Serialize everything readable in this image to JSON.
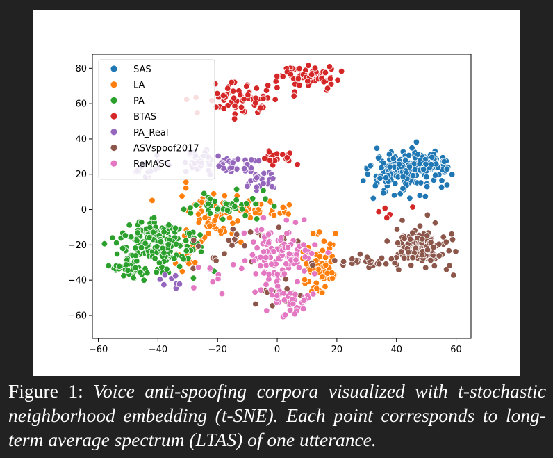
{
  "chart_data": {
    "type": "scatter",
    "title": "",
    "xlabel": "",
    "ylabel": "",
    "xlim": [
      -62,
      65
    ],
    "ylim": [
      -73,
      88
    ],
    "xticks": [
      -60,
      -40,
      -20,
      0,
      20,
      40,
      60
    ],
    "yticks": [
      -60,
      -40,
      -20,
      0,
      20,
      40,
      60,
      80
    ],
    "xtick_labels": [
      "−60",
      "−40",
      "−20",
      "0",
      "20",
      "40",
      "60"
    ],
    "ytick_labels": [
      "−60",
      "−40",
      "−20",
      "0",
      "20",
      "40",
      "60",
      "80"
    ],
    "grid": false,
    "legend_position": "top-left",
    "series": [
      {
        "name": "SAS",
        "color": "#1f77b4",
        "clusters": [
          {
            "cx": 43,
            "cy": 21,
            "sx": 6,
            "sy": 7,
            "n": 160
          },
          {
            "cx": 53,
            "cy": 25,
            "sx": 3,
            "sy": 3,
            "n": 35
          }
        ]
      },
      {
        "name": "LA",
        "color": "#ff7f0e",
        "clusters": [
          {
            "cx": -22,
            "cy": -8,
            "sx": 5,
            "sy": 9,
            "n": 60
          },
          {
            "cx": -8,
            "cy": 0,
            "sx": 6,
            "sy": 2.5,
            "n": 40
          },
          {
            "cx": 13,
            "cy": -30,
            "sx": 3,
            "sy": 8,
            "n": 70
          },
          {
            "cx": -30,
            "cy": -28,
            "sx": 3,
            "sy": 4,
            "n": 15
          }
        ]
      },
      {
        "name": "PA",
        "color": "#2ca02c",
        "clusters": [
          {
            "cx": -40,
            "cy": -20,
            "sx": 7,
            "sy": 8,
            "n": 170
          },
          {
            "cx": -50,
            "cy": -33,
            "sx": 3,
            "sy": 3,
            "n": 40
          },
          {
            "cx": -18,
            "cy": 2,
            "sx": 6,
            "sy": 3,
            "n": 50
          }
        ]
      },
      {
        "name": "BTAS",
        "color": "#d62728",
        "clusters": [
          {
            "cx": -13,
            "cy": 63,
            "sx": 6,
            "sy": 4,
            "n": 70
          },
          {
            "cx": 10,
            "cy": 75,
            "sx": 5,
            "sy": 3,
            "n": 65
          },
          {
            "cx": 0,
            "cy": 30,
            "sx": 4,
            "sy": 2.5,
            "n": 25
          },
          {
            "cx": 38,
            "cy": -2,
            "sx": 3,
            "sy": 2,
            "n": 5
          }
        ]
      },
      {
        "name": "PA_Real",
        "color": "#9467bd",
        "clusters": [
          {
            "cx": -30,
            "cy": 28,
            "sx": 6,
            "sy": 4,
            "n": 30
          },
          {
            "cx": -15,
            "cy": 25,
            "sx": 7,
            "sy": 3,
            "n": 40
          },
          {
            "cx": -3,
            "cy": 15,
            "sx": 2.5,
            "sy": 3,
            "n": 20
          },
          {
            "cx": -44,
            "cy": 21,
            "sx": 2,
            "sy": 1.5,
            "n": 10
          },
          {
            "cx": -36,
            "cy": -40,
            "sx": 2,
            "sy": 2,
            "n": 8
          }
        ]
      },
      {
        "name": "ASVspoof2017",
        "color": "#8c564b",
        "clusters": [
          {
            "cx": 49,
            "cy": -20,
            "sx": 5,
            "sy": 6,
            "n": 110
          },
          {
            "cx": 30,
            "cy": -29,
            "sx": 5,
            "sy": 2,
            "n": 30
          },
          {
            "cx": -10,
            "cy": -20,
            "sx": 9,
            "sy": 9,
            "n": 30
          },
          {
            "cx": -2,
            "cy": -50,
            "sx": 6,
            "sy": 4,
            "n": 10
          }
        ]
      },
      {
        "name": "ReMASC",
        "color": "#e377c2",
        "clusters": [
          {
            "cx": 0,
            "cy": -25,
            "sx": 6,
            "sy": 9,
            "n": 110
          },
          {
            "cx": 4,
            "cy": -52,
            "sx": 4,
            "sy": 4,
            "n": 40
          },
          {
            "cx": -23,
            "cy": -38,
            "sx": 3,
            "sy": 5,
            "n": 8
          }
        ]
      }
    ]
  },
  "caption": {
    "label": "Figure 1:",
    "text": "Voice anti-spoofing corpora visualized with t-stochastic neighborhood embedding (t-SNE). Each point corresponds to long-term average spectrum (LTAS) of one utterance."
  }
}
